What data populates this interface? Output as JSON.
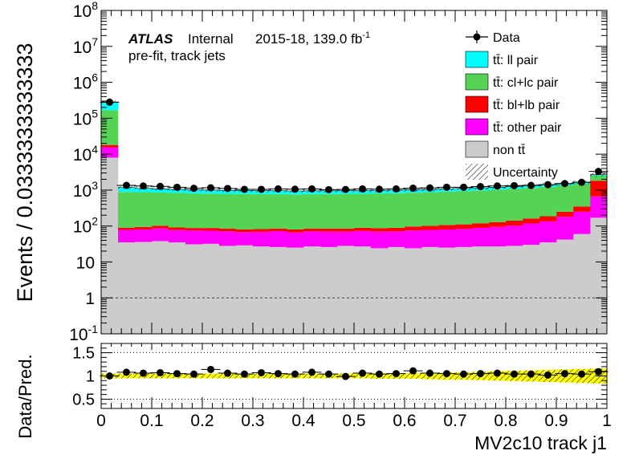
{
  "header": {
    "atlas": "ATLAS",
    "internal": "Internal",
    "lumi_prefix": "2015-18, 139.0 fb",
    "lumi_sup": "-1",
    "subtitle": "pre-fit, track jets"
  },
  "legend": [
    {
      "key": "data",
      "label": "Data",
      "kind": "marker"
    },
    {
      "key": "ll",
      "label": "tt̄: ll pair",
      "color": "#00ffff",
      "kind": "box"
    },
    {
      "key": "cl",
      "label": "tt̄: cl+lc pair",
      "color": "#55d355",
      "kind": "box"
    },
    {
      "key": "bl",
      "label": "tt̄: bl+lb pair",
      "color": "#ff0000",
      "kind": "box"
    },
    {
      "key": "other",
      "label": "tt̄: other pair",
      "color": "#ff00ff",
      "kind": "box"
    },
    {
      "key": "nontt",
      "label": "non tt̄",
      "color": "#cccccc",
      "kind": "box"
    },
    {
      "key": "unc",
      "label": "Uncertainty",
      "kind": "hatch"
    }
  ],
  "chart_data": [
    {
      "type": "area",
      "panel": "main",
      "ylabel": "Events / 0.0333333333333",
      "y_log": true,
      "ylim": [
        0.1,
        100000000
      ],
      "xlim": [
        0,
        1
      ],
      "y_tick_labels": [
        "10⁻¹",
        "1",
        "10",
        "10²",
        "10³",
        "10⁴",
        "10⁵",
        "10⁶",
        "10⁷",
        "10⁸"
      ],
      "reference_line": 1,
      "bin_edges": [
        0,
        0.0333,
        0.0667,
        0.1,
        0.1333,
        0.1667,
        0.2,
        0.2333,
        0.2667,
        0.3,
        0.3333,
        0.3667,
        0.4,
        0.4333,
        0.4667,
        0.5,
        0.5333,
        0.5667,
        0.6,
        0.6333,
        0.6667,
        0.7,
        0.7333,
        0.7667,
        0.8,
        0.8333,
        0.8667,
        0.9,
        0.9333,
        0.9667,
        1.0
      ],
      "stack_order": [
        "nontt",
        "other",
        "bl",
        "cl",
        "ll"
      ],
      "series": [
        {
          "name": "non tt̄",
          "key": "nontt",
          "color": "#cccccc",
          "values": [
            8000,
            35,
            36,
            38,
            35,
            31,
            32,
            28,
            29,
            27,
            26,
            25,
            27,
            26,
            28,
            27,
            24,
            26,
            24,
            26,
            25,
            26,
            27,
            27,
            28,
            30,
            35,
            42,
            60,
            170
          ]
        },
        {
          "name": "tt̄: other pair",
          "key": "other",
          "color": "#ff00ff",
          "values": [
            7500,
            43,
            44,
            48,
            42,
            44,
            42,
            43,
            39,
            42,
            46,
            41,
            44,
            44,
            42,
            46,
            46,
            45,
            51,
            52,
            55,
            57,
            62,
            68,
            75,
            88,
            100,
            138,
            190,
            500
          ]
        },
        {
          "name": "tt̄: bl+lb pair",
          "key": "bl",
          "color": "#ff0000",
          "values": [
            2500,
            12,
            14,
            16,
            14,
            13,
            14,
            13,
            13,
            13,
            13,
            14,
            14,
            15,
            15,
            16,
            17,
            18,
            22,
            23,
            26,
            28,
            30,
            34,
            38,
            44,
            52,
            70,
            100,
            1150
          ]
        },
        {
          "name": "tt̄: cl+lc pair",
          "key": "cl",
          "color": "#55d355",
          "values": [
            150000,
            800,
            780,
            750,
            740,
            720,
            710,
            700,
            700,
            690,
            690,
            680,
            690,
            690,
            700,
            700,
            720,
            730,
            750,
            770,
            800,
            830,
            860,
            900,
            940,
            990,
            1050,
            1100,
            1150,
            700
          ]
        },
        {
          "name": "tt̄: ll pair",
          "key": "ll",
          "color": "#00ffff",
          "values": [
            110000,
            300,
            250,
            230,
            220,
            210,
            205,
            200,
            195,
            190,
            185,
            185,
            180,
            180,
            180,
            175,
            175,
            175,
            175,
            175,
            175,
            175,
            175,
            175,
            175,
            175,
            175,
            175,
            175,
            180
          ]
        },
        {
          "name": "Data",
          "key": "data",
          "x": [
            0.0167,
            0.05,
            0.0833,
            0.1167,
            0.15,
            0.1833,
            0.2167,
            0.25,
            0.2833,
            0.3167,
            0.35,
            0.3833,
            0.4167,
            0.45,
            0.4833,
            0.5167,
            0.55,
            0.5833,
            0.6167,
            0.65,
            0.6833,
            0.7167,
            0.75,
            0.7833,
            0.8167,
            0.85,
            0.8833,
            0.9167,
            0.95,
            0.9833
          ],
          "values": [
            280000,
            1350,
            1300,
            1270,
            1200,
            1120,
            1160,
            1110,
            1050,
            1050,
            1080,
            1060,
            1080,
            1030,
            1040,
            1080,
            1060,
            1080,
            1130,
            1150,
            1200,
            1200,
            1250,
            1300,
            1330,
            1350,
            1420,
            1520,
            1650,
            3300
          ]
        }
      ]
    },
    {
      "type": "scatter",
      "panel": "ratio",
      "xlabel": "MV2c10 track j1",
      "ylabel": "Data/Pred.",
      "xlim": [
        0,
        1
      ],
      "ylim": [
        0.3,
        1.7
      ],
      "y_ticks": [
        0.5,
        1,
        1.5
      ],
      "y_tick_labels": [
        "0.5",
        "1",
        "1.5"
      ],
      "x_ticks": [
        0,
        0.1,
        0.2,
        0.3,
        0.4,
        0.5,
        0.6,
        0.7,
        0.8,
        0.9,
        1
      ],
      "x_tick_labels": [
        "0",
        "0.1",
        "0.2",
        "0.3",
        "0.4",
        "0.5",
        "0.6",
        "0.7",
        "0.8",
        "0.9",
        "1"
      ],
      "x": [
        0.0167,
        0.05,
        0.0833,
        0.1167,
        0.15,
        0.1833,
        0.2167,
        0.25,
        0.2833,
        0.3167,
        0.35,
        0.3833,
        0.4167,
        0.45,
        0.4833,
        0.5167,
        0.55,
        0.5833,
        0.6167,
        0.65,
        0.6833,
        0.7167,
        0.75,
        0.7833,
        0.8167,
        0.85,
        0.8833,
        0.9167,
        0.95,
        0.9833
      ],
      "values": [
        1.0,
        1.08,
        1.06,
        1.07,
        1.05,
        1.04,
        1.14,
        1.06,
        1.04,
        1.07,
        1.05,
        1.04,
        1.08,
        1.04,
        0.99,
        1.06,
        1.04,
        1.05,
        1.11,
        1.06,
        1.05,
        1.04,
        1.05,
        1.06,
        1.04,
        1.04,
        1.02,
        1.05,
        1.04,
        1.09
      ],
      "uncertainty_band": [
        0.05,
        0.05,
        0.05,
        0.05,
        0.05,
        0.05,
        0.05,
        0.05,
        0.05,
        0.05,
        0.05,
        0.05,
        0.05,
        0.05,
        0.05,
        0.05,
        0.06,
        0.06,
        0.06,
        0.07,
        0.08,
        0.08,
        0.09,
        0.1,
        0.11,
        0.12,
        0.13,
        0.14,
        0.15,
        0.16
      ],
      "grid": "dotted horizontal at 0.5, 1, 1.5"
    }
  ]
}
